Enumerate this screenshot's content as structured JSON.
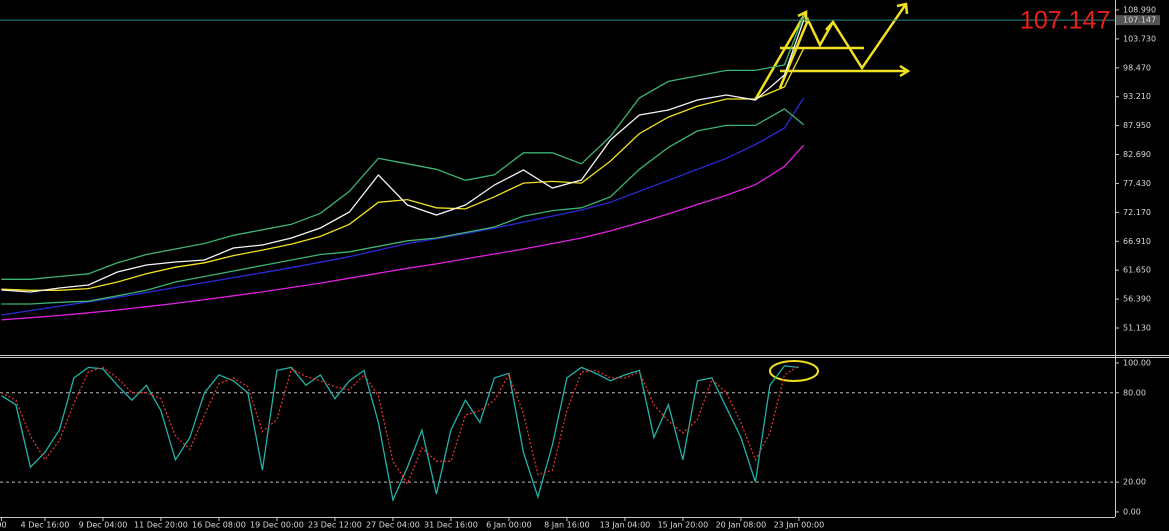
{
  "chart_data": [
    {
      "type": "line",
      "current_price": 107.147,
      "x": [
        6,
        18,
        30,
        42,
        54,
        66,
        78,
        90,
        102,
        114,
        126,
        138,
        150,
        162,
        174,
        186,
        198,
        210,
        222,
        234,
        246,
        258,
        270,
        282,
        294,
        306,
        318,
        330,
        338
      ],
      "series": [
        {
          "color": "#2b2bd6",
          "values": [
            53.5,
            54.3,
            55.1,
            55.9,
            56.7,
            57.6,
            58.5,
            59.4,
            60.3,
            61.2,
            62.1,
            63.1,
            64.1,
            65.3,
            66.5,
            67.4,
            68.3,
            69.3,
            70.4,
            71.5,
            72.6,
            74.0,
            76.0,
            78.0,
            80.0,
            82.0,
            84.5,
            87.5,
            93.0
          ]
        },
        {
          "color": "#e020e0",
          "values": [
            52.6,
            53.0,
            53.4,
            53.9,
            54.4,
            55.0,
            55.6,
            56.3,
            57.0,
            57.7,
            58.5,
            59.3,
            60.2,
            61.1,
            62.0,
            62.8,
            63.7,
            64.6,
            65.5,
            66.5,
            67.5,
            68.8,
            70.3,
            71.9,
            73.6,
            75.3,
            77.2,
            80.5,
            84.4
          ]
        },
        {
          "color": "#3cb371",
          "values": [
            60,
            60,
            60.5,
            61,
            63,
            64.5,
            65.5,
            66.5,
            68,
            69,
            70,
            72,
            76,
            82,
            81,
            80,
            78,
            79,
            83,
            83,
            81,
            86,
            93,
            96,
            97,
            98,
            98,
            99,
            108
          ]
        },
        {
          "color": "#3cb371",
          "values": [
            55.5,
            55.5,
            55.8,
            56,
            57,
            58,
            59.5,
            60.5,
            61.5,
            62.5,
            63.5,
            64.5,
            65,
            66,
            67,
            67.5,
            68.5,
            69.5,
            71.5,
            72.5,
            73,
            75,
            80,
            84,
            87,
            88,
            88,
            91,
            88.1
          ]
        },
        {
          "color": "#f0e020",
          "values": [
            58.2,
            58.0,
            58.0,
            58.3,
            59.5,
            61.0,
            62.2,
            63.0,
            64.3,
            65.3,
            66.4,
            67.8,
            70.0,
            74.0,
            74.5,
            73.0,
            72.8,
            75.0,
            77.5,
            77.8,
            77.5,
            81.5,
            86.5,
            89.5,
            91.5,
            92.8,
            92.8,
            95.0,
            102.0
          ]
        },
        {
          "color": "#f4f4f4",
          "values": [
            58.04,
            57.68,
            58.41,
            58.95,
            61.32,
            62.59,
            63.14,
            63.5,
            65.69,
            66.23,
            67.51,
            69.32,
            72.24,
            78.97,
            73.51,
            71.69,
            73.51,
            77.15,
            79.88,
            76.6,
            78.06,
            85.34,
            89.89,
            90.8,
            92.61,
            93.52,
            92.61,
            97.16,
            107.147
          ]
        }
      ],
      "xlim": [
        5.4,
        466.8
      ],
      "ylim": [
        46.22,
        110.81
      ],
      "yticks": [
        {
          "value": 108.99,
          "label": "108.990"
        },
        {
          "value": 103.73,
          "label": "103.730"
        },
        {
          "value": 98.47,
          "label": "98.470"
        },
        {
          "value": 93.21,
          "label": "93.210"
        },
        {
          "value": 87.95,
          "label": "87.950"
        },
        {
          "value": 82.69,
          "label": "82.690"
        },
        {
          "value": 77.43,
          "label": "77.430"
        },
        {
          "value": 72.17,
          "label": "72.170"
        },
        {
          "value": 66.91,
          "label": "66.910"
        },
        {
          "value": 61.65,
          "label": "61.650"
        },
        {
          "value": 56.39,
          "label": "56.390"
        },
        {
          "value": 51.13,
          "label": "51.130"
        }
      ]
    },
    {
      "type": "line",
      "x": [
        6,
        12,
        18,
        24,
        30,
        36,
        42,
        48,
        54,
        60,
        66,
        72,
        78,
        84,
        90,
        96,
        102,
        108,
        114,
        120,
        126,
        132,
        138,
        144,
        150,
        156,
        162,
        168,
        174,
        180,
        186,
        192,
        198,
        204,
        210,
        216,
        222,
        228,
        234,
        240,
        246,
        252,
        258,
        264,
        270,
        276,
        282,
        288,
        294,
        300,
        306,
        312,
        318,
        324,
        330,
        336
      ],
      "series": [
        {
          "color": "#20b2aa",
          "values": [
            78,
            72,
            30,
            40,
            55,
            90,
            97,
            96,
            85,
            75,
            85,
            68,
            35,
            50,
            80,
            92,
            88,
            80,
            28,
            95,
            97,
            85,
            92,
            76,
            88,
            95,
            60,
            8,
            30,
            55,
            12,
            55,
            75,
            60,
            90,
            93,
            40,
            10,
            45,
            90,
            97,
            93,
            88,
            92,
            95,
            50,
            72,
            35,
            88,
            90,
            70,
            50,
            20,
            85,
            98,
            97
          ]
        },
        {
          "color": "#e03030",
          "style": "dashed",
          "values": [
            80,
            75,
            51,
            35,
            48,
            73,
            94,
            97,
            90,
            80,
            80,
            76,
            51,
            42,
            65,
            86,
            90,
            84,
            54,
            62,
            96,
            91,
            88,
            84,
            82,
            92,
            78,
            34,
            19,
            43,
            34,
            34,
            65,
            68,
            75,
            92,
            66,
            25,
            28,
            68,
            94,
            95,
            90,
            90,
            94,
            72,
            61,
            53,
            62,
            89,
            80,
            60,
            35,
            53,
            92,
            98
          ]
        }
      ],
      "levels": [
        80,
        20
      ],
      "xlim": [
        5.4,
        466.8
      ],
      "ylim": [
        -3.4,
        104
      ],
      "yticks": [
        {
          "value": 100,
          "label": "100.00"
        },
        {
          "value": 80,
          "label": "80.00"
        },
        {
          "value": 20,
          "label": "20.00"
        },
        {
          "value": 0,
          "label": "0.00"
        }
      ],
      "xticks": [
        {
          "value": 6,
          "label": "00"
        },
        {
          "value": 24,
          "label": "4 Dec 16:00"
        },
        {
          "value": 48,
          "label": "9 Dec 04:00"
        },
        {
          "value": 72,
          "label": "11 Dec 20:00"
        },
        {
          "value": 96,
          "label": "16 Dec 08:00"
        },
        {
          "value": 120,
          "label": "19 Dec 00:00"
        },
        {
          "value": 144,
          "label": "23 Dec 12:00"
        },
        {
          "value": 168,
          "label": "27 Dec 04:00"
        },
        {
          "value": 192,
          "label": "31 Dec 16:00"
        },
        {
          "value": 216,
          "label": "6 Jan 00:00"
        },
        {
          "value": 240,
          "label": "8 Jan 16:00"
        },
        {
          "value": 264,
          "label": "13 Jan 04:00"
        },
        {
          "value": 288,
          "label": "15 Jan 20:00"
        },
        {
          "value": 312,
          "label": "20 Jan 08:00"
        },
        {
          "value": 336,
          "label": "23 Jan 00:00"
        }
      ]
    }
  ]
}
